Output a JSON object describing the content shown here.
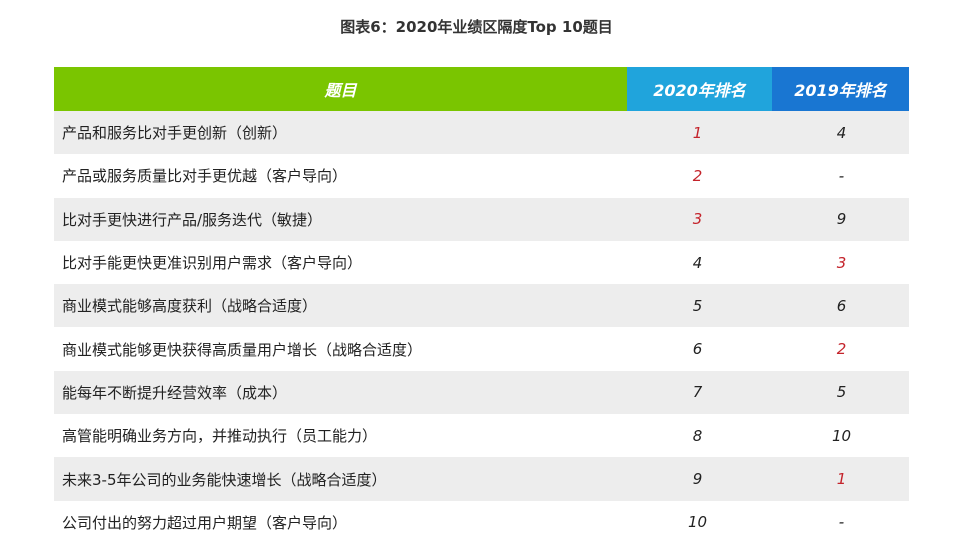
{
  "title": "图表6：2020年业绩区隔度Top 10题目",
  "colors": {
    "header_topic": "#7ac500",
    "header_2020": "#20a4dc",
    "header_2019": "#1976d2",
    "highlight": "#c4232b",
    "row_stripe": "#ededed"
  },
  "table": {
    "headers": {
      "topic": "题目",
      "rank_2020": "2020年排名",
      "rank_2019": "2019年排名"
    },
    "rows": [
      {
        "topic": "产品和服务比对手更创新（创新）",
        "rank_2020": "1",
        "rank_2019": "4",
        "hl_2020": true,
        "hl_2019": false
      },
      {
        "topic": "产品或服务质量比对手更优越（客户导向）",
        "rank_2020": "2",
        "rank_2019": "-",
        "hl_2020": true,
        "hl_2019": false
      },
      {
        "topic": "比对手更快进行产品/服务迭代（敏捷）",
        "rank_2020": "3",
        "rank_2019": "9",
        "hl_2020": true,
        "hl_2019": false
      },
      {
        "topic": "比对手能更快更准识别用户需求（客户导向）",
        "rank_2020": "4",
        "rank_2019": "3",
        "hl_2020": false,
        "hl_2019": true
      },
      {
        "topic": "商业模式能够高度获利（战略合适度）",
        "rank_2020": "5",
        "rank_2019": "6",
        "hl_2020": false,
        "hl_2019": false
      },
      {
        "topic": "商业模式能够更快获得高质量用户增长（战略合适度）",
        "rank_2020": "6",
        "rank_2019": "2",
        "hl_2020": false,
        "hl_2019": true
      },
      {
        "topic": "能每年不断提升经营效率（成本）",
        "rank_2020": "7",
        "rank_2019": "5",
        "hl_2020": false,
        "hl_2019": false
      },
      {
        "topic": "高管能明确业务方向，并推动执行（员工能力）",
        "rank_2020": "8",
        "rank_2019": "10",
        "hl_2020": false,
        "hl_2019": false
      },
      {
        "topic": "未来3-5年公司的业务能快速增长（战略合适度）",
        "rank_2020": "9",
        "rank_2019": "1",
        "hl_2020": false,
        "hl_2019": true
      },
      {
        "topic": "公司付出的努力超过用户期望（客户导向）",
        "rank_2020": "10",
        "rank_2019": "-",
        "hl_2020": false,
        "hl_2019": false
      }
    ]
  }
}
